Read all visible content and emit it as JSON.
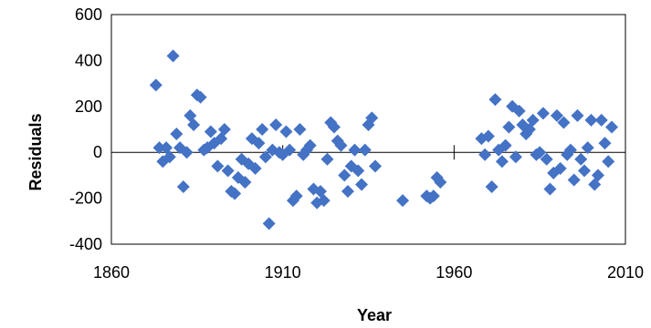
{
  "chart_data": {
    "type": "scatter",
    "title": "",
    "xlabel": "Year",
    "ylabel": "Residuals",
    "xlim": [
      1860,
      2010
    ],
    "ylim": [
      -400,
      600
    ],
    "xticks": [
      1860,
      1910,
      1960,
      2010
    ],
    "yticks": [
      -400,
      -200,
      0,
      200,
      400,
      600
    ],
    "grid": false,
    "legend": "none",
    "marker_color": "#4472C4",
    "series": [
      {
        "marker": "diamond",
        "points": [
          [
            1873,
            293
          ],
          [
            1874,
            20
          ],
          [
            1875,
            -40
          ],
          [
            1876,
            20
          ],
          [
            1877,
            -20
          ],
          [
            1878,
            420
          ],
          [
            1879,
            80
          ],
          [
            1880,
            20
          ],
          [
            1881,
            -150
          ],
          [
            1882,
            0
          ],
          [
            1883,
            160
          ],
          [
            1884,
            120
          ],
          [
            1885,
            250
          ],
          [
            1886,
            240
          ],
          [
            1887,
            10
          ],
          [
            1888,
            20
          ],
          [
            1889,
            90
          ],
          [
            1890,
            40
          ],
          [
            1891,
            -60
          ],
          [
            1892,
            60
          ],
          [
            1893,
            100
          ],
          [
            1894,
            -80
          ],
          [
            1895,
            -170
          ],
          [
            1896,
            -180
          ],
          [
            1897,
            -110
          ],
          [
            1898,
            -30
          ],
          [
            1899,
            -130
          ],
          [
            1900,
            -50
          ],
          [
            1901,
            60
          ],
          [
            1902,
            -70
          ],
          [
            1903,
            40
          ],
          [
            1904,
            100
          ],
          [
            1905,
            -20
          ],
          [
            1906,
            -310
          ],
          [
            1907,
            10
          ],
          [
            1908,
            120
          ],
          [
            1909,
            0
          ],
          [
            1910,
            -10
          ],
          [
            1911,
            90
          ],
          [
            1912,
            10
          ],
          [
            1913,
            -210
          ],
          [
            1914,
            -190
          ],
          [
            1915,
            100
          ],
          [
            1916,
            -10
          ],
          [
            1917,
            10
          ],
          [
            1918,
            30
          ],
          [
            1919,
            -160
          ],
          [
            1920,
            -220
          ],
          [
            1921,
            -170
          ],
          [
            1922,
            -210
          ],
          [
            1923,
            -30
          ],
          [
            1924,
            130
          ],
          [
            1925,
            110
          ],
          [
            1926,
            50
          ],
          [
            1927,
            30
          ],
          [
            1928,
            -100
          ],
          [
            1929,
            -170
          ],
          [
            1930,
            -60
          ],
          [
            1931,
            10
          ],
          [
            1932,
            -80
          ],
          [
            1933,
            -140
          ],
          [
            1934,
            10
          ],
          [
            1935,
            120
          ],
          [
            1936,
            150
          ],
          [
            1937,
            -60
          ],
          [
            1945,
            -210
          ],
          [
            1952,
            -190
          ],
          [
            1953,
            -200
          ],
          [
            1954,
            -190
          ],
          [
            1955,
            -110
          ],
          [
            1956,
            -130
          ],
          [
            1968,
            60
          ],
          [
            1969,
            -10
          ],
          [
            1970,
            70
          ],
          [
            1971,
            -150
          ],
          [
            1972,
            230
          ],
          [
            1973,
            10
          ],
          [
            1974,
            -40
          ],
          [
            1975,
            30
          ],
          [
            1976,
            110
          ],
          [
            1977,
            200
          ],
          [
            1978,
            -20
          ],
          [
            1979,
            180
          ],
          [
            1980,
            120
          ],
          [
            1981,
            80
          ],
          [
            1982,
            100
          ],
          [
            1983,
            140
          ],
          [
            1984,
            -10
          ],
          [
            1985,
            0
          ],
          [
            1986,
            170
          ],
          [
            1987,
            -30
          ],
          [
            1988,
            -160
          ],
          [
            1989,
            -90
          ],
          [
            1990,
            160
          ],
          [
            1991,
            -70
          ],
          [
            1992,
            130
          ],
          [
            1993,
            -10
          ],
          [
            1994,
            10
          ],
          [
            1995,
            -120
          ],
          [
            1996,
            160
          ],
          [
            1997,
            -30
          ],
          [
            1998,
            -80
          ],
          [
            1999,
            20
          ],
          [
            2000,
            140
          ],
          [
            2001,
            -140
          ],
          [
            2002,
            -100
          ],
          [
            2003,
            140
          ],
          [
            2004,
            40
          ],
          [
            2005,
            -40
          ],
          [
            2006,
            110
          ]
        ]
      }
    ]
  }
}
